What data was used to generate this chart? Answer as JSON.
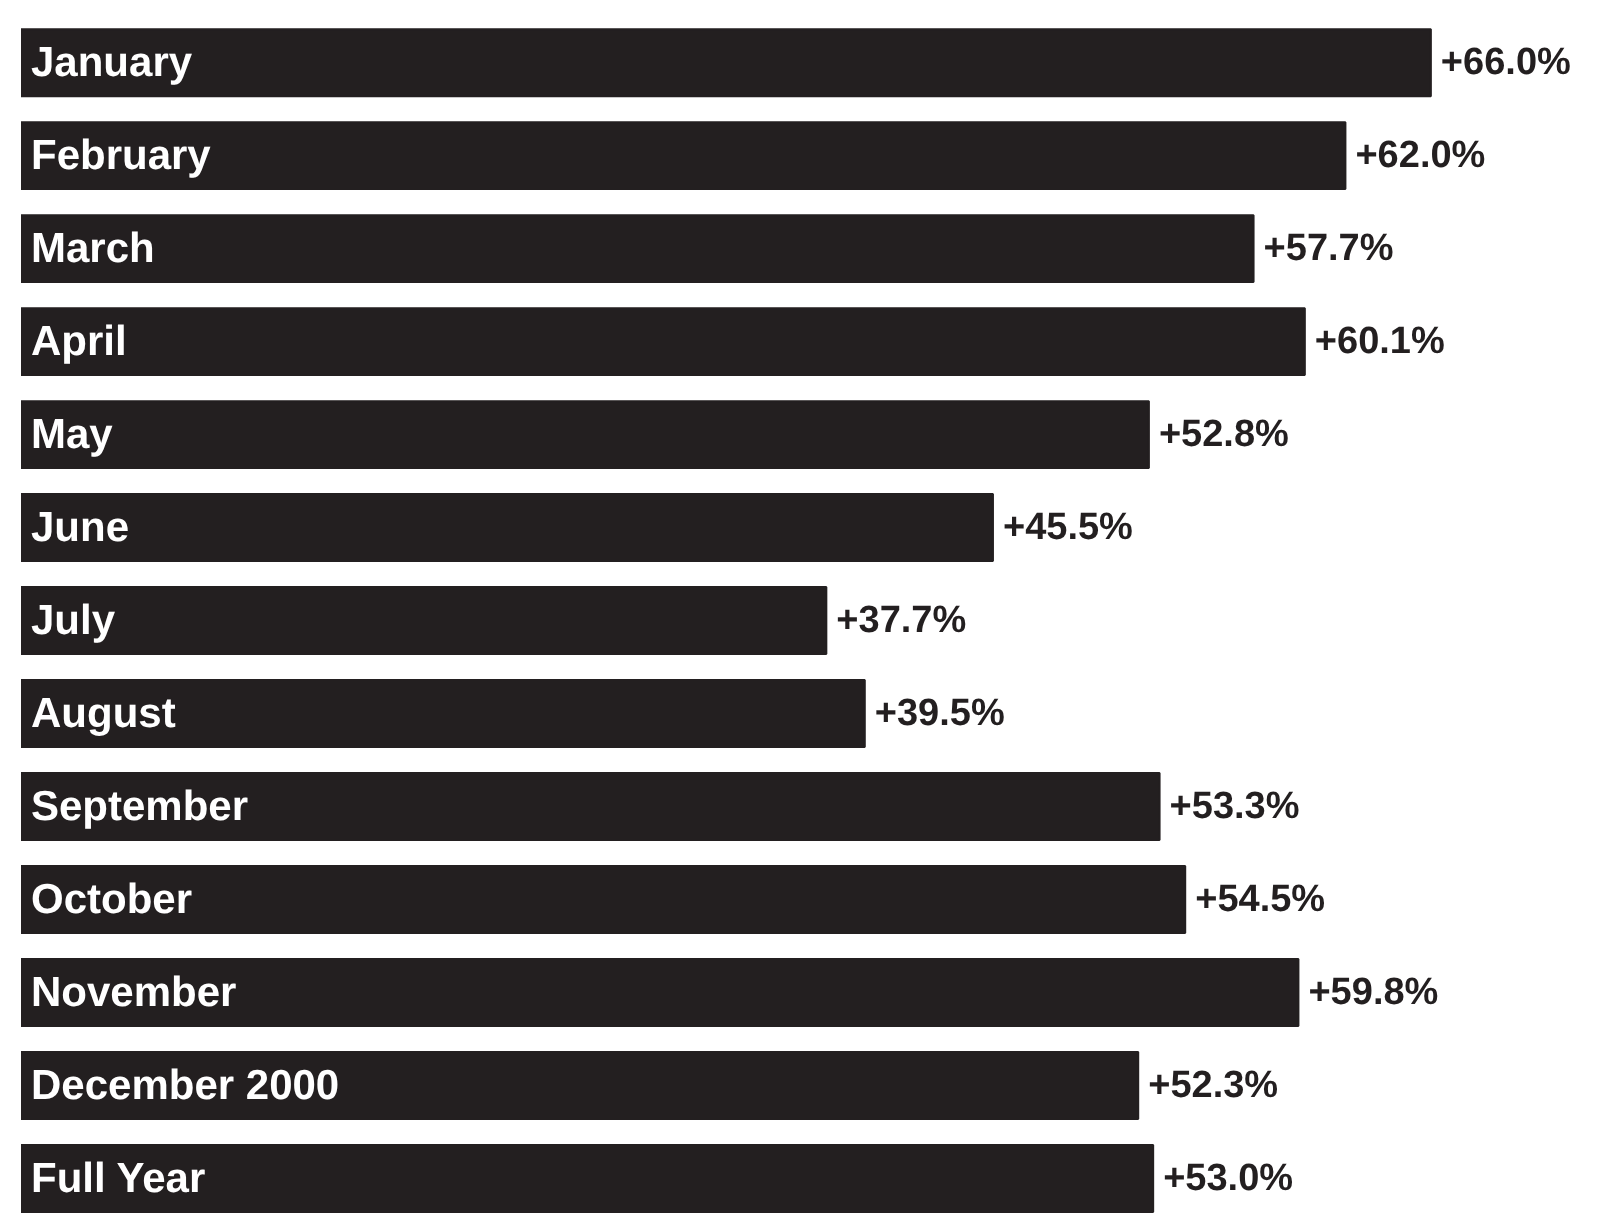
{
  "chart_data": {
    "type": "bar",
    "orientation": "horizontal",
    "categories": [
      "January",
      "February",
      "March",
      "April",
      "May",
      "June",
      "July",
      "August",
      "September",
      "October",
      "November",
      "December 2000",
      "Full Year"
    ],
    "values": [
      66.0,
      62.0,
      57.7,
      60.1,
      52.8,
      45.5,
      37.7,
      39.5,
      53.3,
      54.5,
      59.8,
      52.3,
      53.0
    ],
    "value_labels": [
      "+66.0%",
      "+62.0%",
      "+57.7%",
      "+60.1%",
      "+52.8%",
      "+45.5%",
      "+37.7%",
      "+39.5%",
      "+53.3%",
      "+54.5%",
      "+59.8%",
      "+52.3%",
      "+53.0%"
    ],
    "color": "#231f20"
  }
}
